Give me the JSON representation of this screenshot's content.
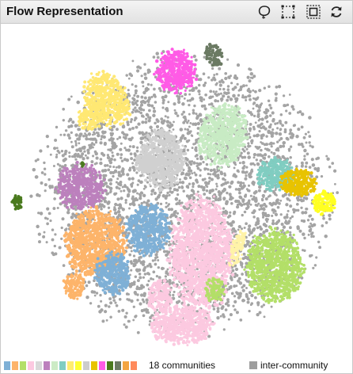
{
  "panel": {
    "title": "Flow Representation",
    "tools": [
      {
        "name": "lasso-tool-icon"
      },
      {
        "name": "rectangle-select-icon"
      },
      {
        "name": "zoom-box-icon"
      },
      {
        "name": "refresh-icon"
      }
    ]
  },
  "legend": {
    "communities_label": "18 communities",
    "inter_label": "inter-community",
    "inter_color": "#9e9e9e",
    "colors": [
      "#7fb0d6",
      "#fdb46a",
      "#b3df68",
      "#fcc9e0",
      "#d9d9d9",
      "#bc80bd",
      "#ccebc5",
      "#80cdc1",
      "#ffed6f",
      "#ffff33",
      "#cccccc",
      "#e8c300",
      "#ff5be6",
      "#4a7a1e",
      "#6b7a63",
      "#f3a541",
      "#ff8a5b"
    ]
  },
  "communities": [
    {
      "id": "yellow-community",
      "color": "#ffe873"
    },
    {
      "id": "magenta-community",
      "color": "#ff5be6"
    },
    {
      "id": "darkgray-community",
      "color": "#6b7a63"
    },
    {
      "id": "lightgray-community",
      "color": "#d0d0d0"
    },
    {
      "id": "mint-community",
      "color": "#c8ebc4"
    },
    {
      "id": "teal-community",
      "color": "#80cdc1"
    },
    {
      "id": "gold-community",
      "color": "#e8c300"
    },
    {
      "id": "brightyellow-community",
      "color": "#ffff22"
    },
    {
      "id": "purple-community",
      "color": "#bc80bd"
    },
    {
      "id": "darkgreen-community",
      "color": "#4a7a1e"
    },
    {
      "id": "orange-community",
      "color": "#fdb46a"
    },
    {
      "id": "blue-community",
      "color": "#7fb0d6"
    },
    {
      "id": "pink-community",
      "color": "#fcc9e0"
    },
    {
      "id": "lime-community",
      "color": "#b3df68"
    },
    {
      "id": "cream-community",
      "color": "#fff3a8"
    },
    {
      "id": "inter-community",
      "color": "#a4a4a4"
    }
  ]
}
